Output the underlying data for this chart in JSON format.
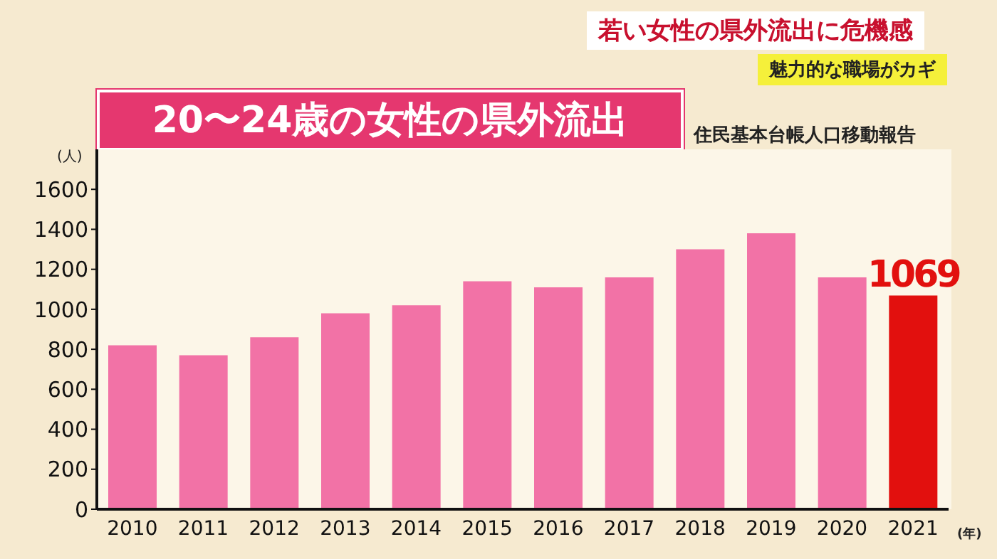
{
  "chart_data": {
    "type": "bar",
    "title": "20〜24歳の女性の県外流出",
    "ylabel": "(人)",
    "xlabel": "(年)",
    "annotations": [
      "若い女性の県外流出に危機感",
      "魅力的な職場がカギ",
      "住民基本台帳人口移動報告"
    ],
    "categories": [
      "2010",
      "2011",
      "2012",
      "2013",
      "2014",
      "2015",
      "2016",
      "2017",
      "2018",
      "2019",
      "2020",
      "2021"
    ],
    "values": [
      820,
      770,
      860,
      980,
      1020,
      1140,
      1110,
      1160,
      1300,
      1380,
      1160,
      1069
    ],
    "colors": [
      "#f272a6",
      "#f272a6",
      "#f272a6",
      "#f272a6",
      "#f272a6",
      "#f272a6",
      "#f272a6",
      "#f272a6",
      "#f272a6",
      "#f272a6",
      "#f272a6",
      "#e2100e"
    ],
    "value_labels": [
      null,
      null,
      null,
      null,
      null,
      null,
      null,
      null,
      null,
      null,
      null,
      "1069"
    ],
    "ylim": [
      0,
      1800
    ],
    "yticks": [
      0,
      200,
      400,
      600,
      800,
      1000,
      1200,
      1400,
      1600
    ],
    "grid": false,
    "legend": false
  }
}
